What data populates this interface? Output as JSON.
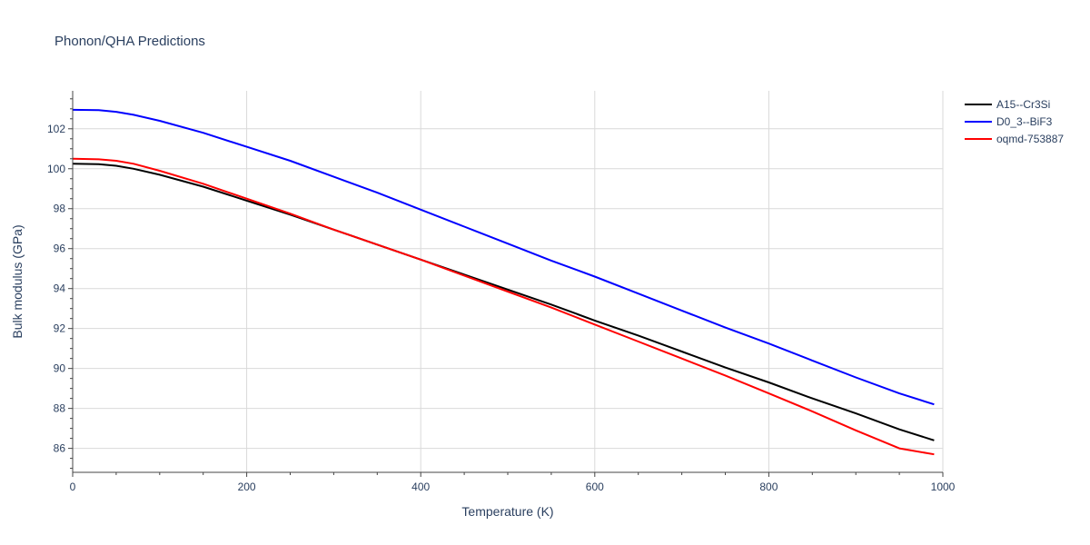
{
  "chart_data": {
    "type": "line",
    "title": "Phonon/QHA Predictions",
    "xlabel": "Temperature (K)",
    "ylabel": "Bulk modulus (GPa)",
    "xlim": [
      0,
      1000
    ],
    "ylim": [
      84.8,
      103.9
    ],
    "xticks": [
      0,
      200,
      400,
      600,
      800,
      1000
    ],
    "yticks": [
      86,
      88,
      90,
      92,
      94,
      96,
      98,
      100,
      102
    ],
    "grid": true,
    "legend_position": "top-right",
    "series": [
      {
        "name": "A15--Cr3Si",
        "color": "#000000",
        "x": [
          0,
          30,
          50,
          70,
          100,
          150,
          200,
          250,
          300,
          350,
          400,
          450,
          500,
          550,
          600,
          650,
          700,
          750,
          800,
          850,
          900,
          950,
          990
        ],
        "y": [
          100.25,
          100.23,
          100.15,
          100.0,
          99.7,
          99.1,
          98.4,
          97.7,
          96.95,
          96.2,
          95.45,
          94.7,
          93.95,
          93.2,
          92.4,
          91.65,
          90.85,
          90.05,
          89.3,
          88.5,
          87.75,
          86.95,
          86.4
        ]
      },
      {
        "name": "D0_3--BiF3",
        "color": "#0000ff",
        "x": [
          0,
          30,
          50,
          70,
          100,
          150,
          200,
          250,
          300,
          350,
          400,
          450,
          500,
          550,
          600,
          650,
          700,
          750,
          800,
          850,
          900,
          950,
          990
        ],
        "y": [
          102.95,
          102.93,
          102.85,
          102.7,
          102.4,
          101.8,
          101.1,
          100.4,
          99.6,
          98.8,
          97.95,
          97.1,
          96.25,
          95.4,
          94.6,
          93.75,
          92.9,
          92.05,
          91.25,
          90.4,
          89.55,
          88.75,
          88.2
        ]
      },
      {
        "name": "oqmd-753887",
        "color": "#ff0000",
        "x": [
          0,
          30,
          50,
          70,
          100,
          150,
          200,
          250,
          300,
          350,
          400,
          450,
          500,
          550,
          600,
          650,
          700,
          750,
          800,
          850,
          900,
          950,
          990
        ],
        "y": [
          100.5,
          100.47,
          100.4,
          100.25,
          99.9,
          99.25,
          98.5,
          97.75,
          96.95,
          96.2,
          95.45,
          94.65,
          93.85,
          93.05,
          92.2,
          91.35,
          90.5,
          89.65,
          88.75,
          87.85,
          86.9,
          86.0,
          85.7
        ]
      }
    ]
  }
}
